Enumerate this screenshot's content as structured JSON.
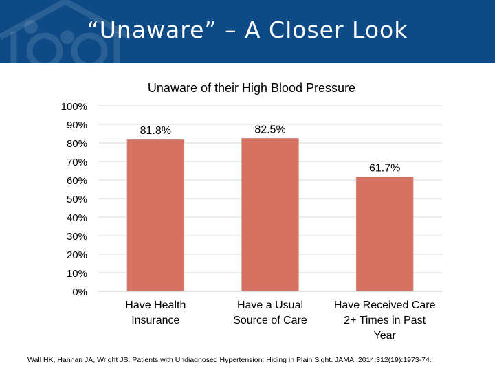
{
  "slide": {
    "title": "“Unaware” – A Closer Look",
    "citation": "Wall HK, Hannan JA, Wright JS. Patients with Undiagnosed Hypertension: Hiding in Plain Sight. JAMA. 2014;312(19):1973-74."
  },
  "colors": {
    "header": "#0d4a86",
    "bar": "#d57261",
    "grid": "#d9d9d9"
  },
  "icons": {
    "logo": "house-logo-icon"
  },
  "chart_data": {
    "type": "bar",
    "title": "Unaware of their High Blood Pressure",
    "categories": [
      [
        "Have Health",
        "Insurance"
      ],
      [
        "Have a Usual",
        "Source of Care"
      ],
      [
        "Have Received Care",
        "2+ Times in Past",
        "Year"
      ]
    ],
    "values": [
      81.8,
      82.5,
      61.7
    ],
    "data_labels": [
      "81.8%",
      "82.5%",
      "61.7%"
    ],
    "ylim": [
      0,
      100
    ],
    "yticks": [
      "0%",
      "10%",
      "20%",
      "30%",
      "40%",
      "50%",
      "60%",
      "70%",
      "80%",
      "90%",
      "100%"
    ],
    "xlabel": "",
    "ylabel": "",
    "grid": true,
    "legend": "none"
  }
}
